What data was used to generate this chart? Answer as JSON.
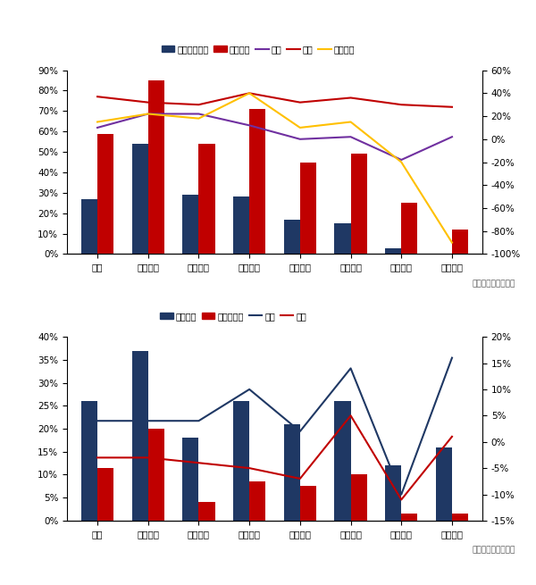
{
  "chart1": {
    "categories": [
      "全国",
      "华南区域",
      "西北区域",
      "华中区域",
      "华东区域",
      "西南区域",
      "华北区域",
      "东北区域"
    ],
    "bar_blue": [
      0.27,
      0.54,
      0.29,
      0.28,
      0.17,
      0.15,
      0.03,
      0.0
    ],
    "bar_red": [
      0.59,
      0.85,
      0.54,
      0.71,
      0.45,
      0.49,
      0.25,
      0.12
    ],
    "line_tongbi": [
      0.1,
      0.22,
      0.22,
      0.12,
      0.0,
      0.02,
      -0.18,
      0.02
    ],
    "line_huanbi": [
      0.37,
      0.32,
      0.3,
      0.4,
      0.32,
      0.36,
      0.3,
      0.28
    ],
    "line_yujitongbi": [
      0.15,
      0.22,
      0.18,
      0.4,
      0.1,
      0.15,
      -0.2,
      -0.9
    ],
    "left_ylim": [
      0.0,
      0.9
    ],
    "right_ylim": [
      -1.0,
      0.6
    ],
    "left_yticks": [
      0.0,
      0.1,
      0.2,
      0.3,
      0.4,
      0.5,
      0.6,
      0.7,
      0.8,
      0.9
    ],
    "right_yticks": [
      -1.0,
      -0.8,
      -0.6,
      -0.4,
      -0.2,
      0.0,
      0.2,
      0.4,
      0.6
    ],
    "legend_labels": [
      "工地开复工率",
      "预计下周",
      "同比",
      "环比",
      "预计同比"
    ],
    "bar_blue_color": "#1f3864",
    "bar_red_color": "#c00000",
    "line_tongbi_color": "#7030a0",
    "line_huanbi_color": "#c00000",
    "line_yujitongbi_color": "#ffc000",
    "source": "数据来源：百年建筑"
  },
  "chart2": {
    "categories": [
      "全国",
      "华南区域",
      "西北区域",
      "华中区域",
      "华东区域",
      "西南区域",
      "华北区域",
      "东北区域"
    ],
    "bar_blue": [
      0.26,
      0.37,
      0.18,
      0.26,
      0.21,
      0.26,
      0.12,
      0.16
    ],
    "bar_red": [
      0.115,
      0.2,
      0.04,
      0.085,
      0.075,
      0.1,
      0.015,
      0.015
    ],
    "line_tongbi": [
      0.04,
      0.04,
      0.04,
      0.1,
      0.02,
      0.14,
      -0.1,
      0.16
    ],
    "line_huanbi": [
      -0.03,
      -0.03,
      -0.04,
      -0.05,
      -0.07,
      0.05,
      -0.11,
      0.01
    ],
    "left_ylim": [
      0.0,
      0.4
    ],
    "right_ylim": [
      -0.15,
      0.2
    ],
    "left_yticks": [
      0.0,
      0.05,
      0.1,
      0.15,
      0.2,
      0.25,
      0.3,
      0.35,
      0.4
    ],
    "right_yticks": [
      -0.15,
      -0.1,
      -0.05,
      0.0,
      0.05,
      0.1,
      0.15,
      0.2
    ],
    "legend_labels": [
      "劳务到位",
      "劳务上岗率",
      "同比",
      "同比"
    ],
    "bar_blue_color": "#1f3864",
    "bar_red_color": "#c00000",
    "line_tongbi_color": "#1f3864",
    "line_huanbi_color": "#c00000",
    "source": "数据来源：百年建筑"
  }
}
